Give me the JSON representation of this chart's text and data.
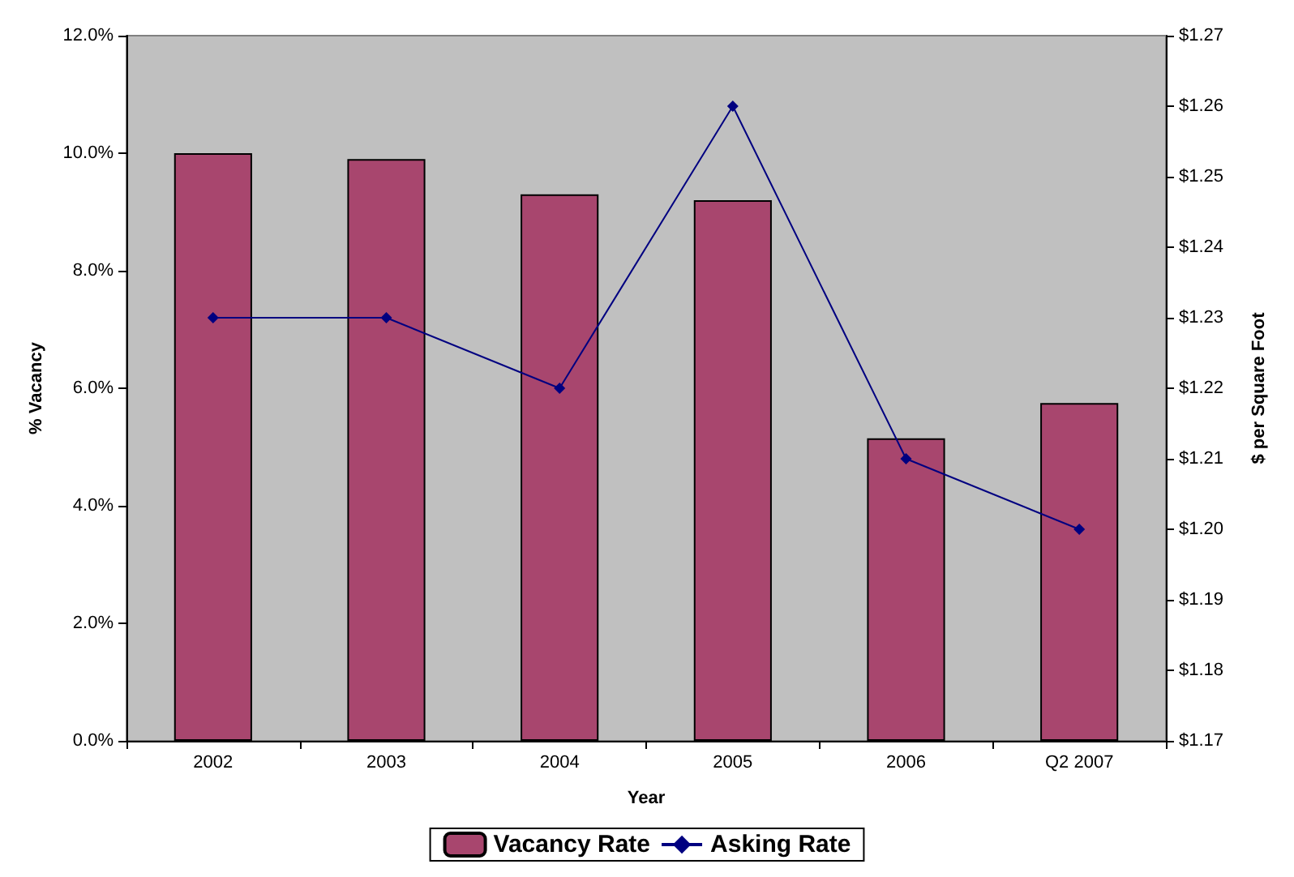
{
  "chart_data": {
    "type": "bar",
    "xlabel": "Year",
    "ylabel": "% Vacancy",
    "y2label": "$ per Square Foot",
    "categories": [
      "2002",
      "2003",
      "2004",
      "2005",
      "2006",
      "Q2 2007"
    ],
    "series": [
      {
        "name": "Vacancy Rate",
        "color": "#a8466e",
        "values": [
          10.0,
          9.9,
          9.3,
          9.2,
          5.15,
          5.75
        ]
      },
      {
        "name": "Asking Rate",
        "type": "line",
        "axis": "y2",
        "color": "#000080",
        "marker": "diamond",
        "values": [
          1.23,
          1.23,
          1.22,
          1.26,
          1.21,
          1.2
        ]
      }
    ],
    "ylim": [
      0,
      12
    ],
    "yticks": [
      {
        "value": 0,
        "label": "0.0%"
      },
      {
        "value": 2,
        "label": "2.0%"
      },
      {
        "value": 4,
        "label": "4.0%"
      },
      {
        "value": 6,
        "label": "6.0%"
      },
      {
        "value": 8,
        "label": "8.0%"
      },
      {
        "value": 10,
        "label": "10.0%"
      },
      {
        "value": 12,
        "label": "12.0%"
      }
    ],
    "y2lim": [
      1.17,
      1.27
    ],
    "y2ticks": [
      {
        "value": 1.17,
        "label": "$1.17"
      },
      {
        "value": 1.18,
        "label": "$1.18"
      },
      {
        "value": 1.19,
        "label": "$1.19"
      },
      {
        "value": 1.2,
        "label": "$1.20"
      },
      {
        "value": 1.21,
        "label": "$1.21"
      },
      {
        "value": 1.22,
        "label": "$1.22"
      },
      {
        "value": 1.23,
        "label": "$1.23"
      },
      {
        "value": 1.24,
        "label": "$1.24"
      },
      {
        "value": 1.25,
        "label": "$1.25"
      },
      {
        "value": 1.26,
        "label": "$1.26"
      },
      {
        "value": 1.27,
        "label": "$1.27"
      }
    ],
    "legend": "bottom"
  }
}
